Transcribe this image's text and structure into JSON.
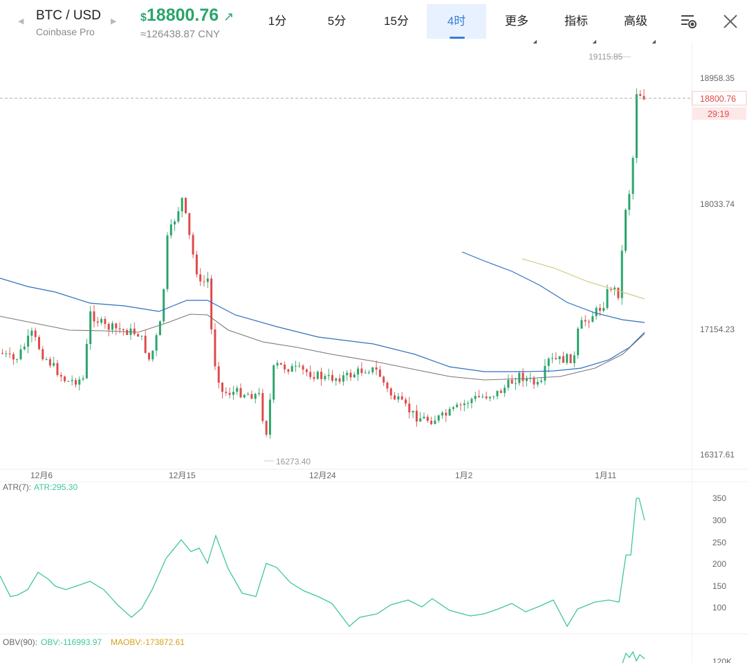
{
  "header": {
    "pair": "BTC / USD",
    "exchange": "Coinbase Pro",
    "currency_symbol": "$",
    "price": "18800.76",
    "price_cny": "≈126438.87 CNY",
    "price_color": "#2aa56a",
    "nav_prev_icon": "triangle-left-icon",
    "nav_next_icon": "triangle-right-icon"
  },
  "tabs": [
    {
      "label": "1分",
      "active": false
    },
    {
      "label": "5分",
      "active": false
    },
    {
      "label": "15分",
      "active": false
    },
    {
      "label": "4时",
      "active": true
    },
    {
      "label": "更多",
      "active": false,
      "dropdown": true
    },
    {
      "label": "指标",
      "active": false,
      "dropdown": true
    },
    {
      "label": "高级",
      "active": false,
      "dropdown": true
    }
  ],
  "icons": {
    "settings": "chart-settings-icon",
    "close": "close-icon"
  },
  "colors": {
    "up": "#2aa56a",
    "down": "#e04a4a",
    "ma_blue": "#2d6fc0",
    "ma_gray": "#777777",
    "ma_yellow": "#d3cc8a",
    "atr": "#3ec5a0",
    "accent": "#3a7bd5"
  },
  "price_chart": {
    "y_ticks": [
      "18958.35",
      "18033.74",
      "17154.23",
      "16317.61"
    ],
    "current_price": "18800.76",
    "countdown": "29:19",
    "high_label": "19115.85",
    "low_label": "16273.40",
    "x_ticks": [
      "12月6",
      "12月15",
      "12月24",
      "1月2",
      "1月11"
    ]
  },
  "atr": {
    "legend": "ATR(7):",
    "value": "ATR:295.30",
    "y_ticks": [
      "350",
      "300",
      "250",
      "200",
      "150",
      "100"
    ]
  },
  "obv": {
    "legend": "OBV(90):",
    "value": "OBV:-116993.97",
    "ma_value": "MAOBV:-173872.61",
    "y_tick": "120K"
  }
}
